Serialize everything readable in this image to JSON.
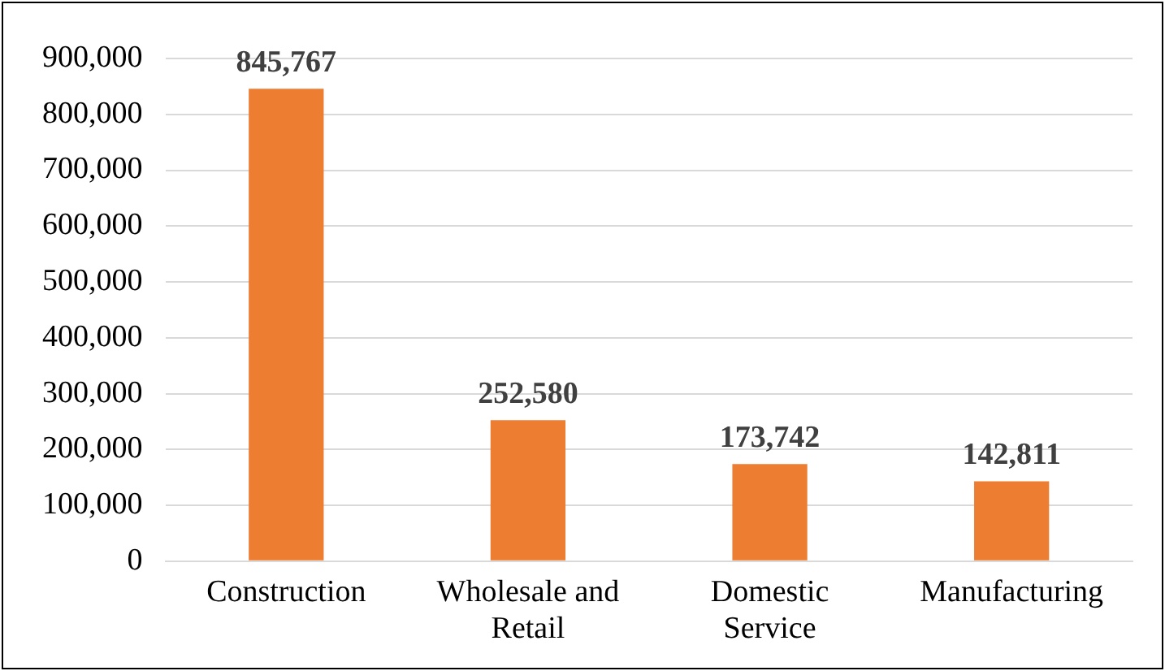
{
  "chart_data": {
    "type": "bar",
    "categories": [
      "Construction",
      "Wholesale and Retail",
      "Domestic Service",
      "Manufacturing"
    ],
    "values": [
      845767,
      252580,
      173742,
      142811
    ],
    "value_labels": [
      "845,767",
      "252,580",
      "173,742",
      "142,811"
    ],
    "color": "#ed7d31",
    "ylim": [
      0,
      900000
    ],
    "yticks": [
      0,
      {
        "value": 100000,
        "label": "100,000"
      },
      {
        "value": 200000,
        "label": "200,000"
      },
      {
        "value": 300000,
        "label": "300,000"
      },
      {
        "value": 400000,
        "label": "400,000"
      },
      {
        "value": 500000,
        "label": "500,000"
      },
      {
        "value": 600000,
        "label": "600,000"
      },
      {
        "value": 700000,
        "label": "700,000"
      },
      {
        "value": 800000,
        "label": "800,000"
      },
      {
        "value": 900000,
        "label": "900,000"
      }
    ],
    "grid": "y",
    "legend": false
  }
}
